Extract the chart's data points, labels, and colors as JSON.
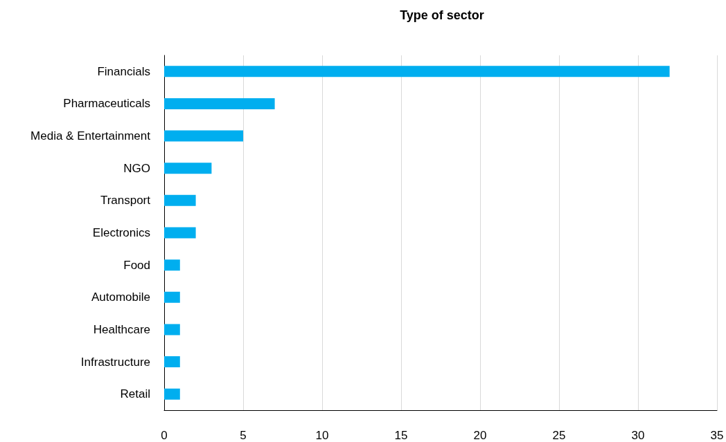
{
  "chart_data": {
    "type": "bar",
    "title": "Type of sector",
    "orientation": "horizontal",
    "categories": [
      "Financials",
      "Pharmaceuticals",
      "Media & Entertainment",
      "NGO",
      "Transport",
      "Electronics",
      "Food",
      "Automobile",
      "Healthcare",
      "Infrastructure",
      "Retail"
    ],
    "values": [
      32,
      7,
      5,
      3,
      2,
      2,
      1,
      1,
      1,
      1,
      1
    ],
    "color": "#00aeef",
    "xlim": [
      0,
      35
    ],
    "xticks": [
      0,
      5,
      10,
      15,
      20,
      25,
      30,
      35
    ],
    "grid": "x"
  }
}
